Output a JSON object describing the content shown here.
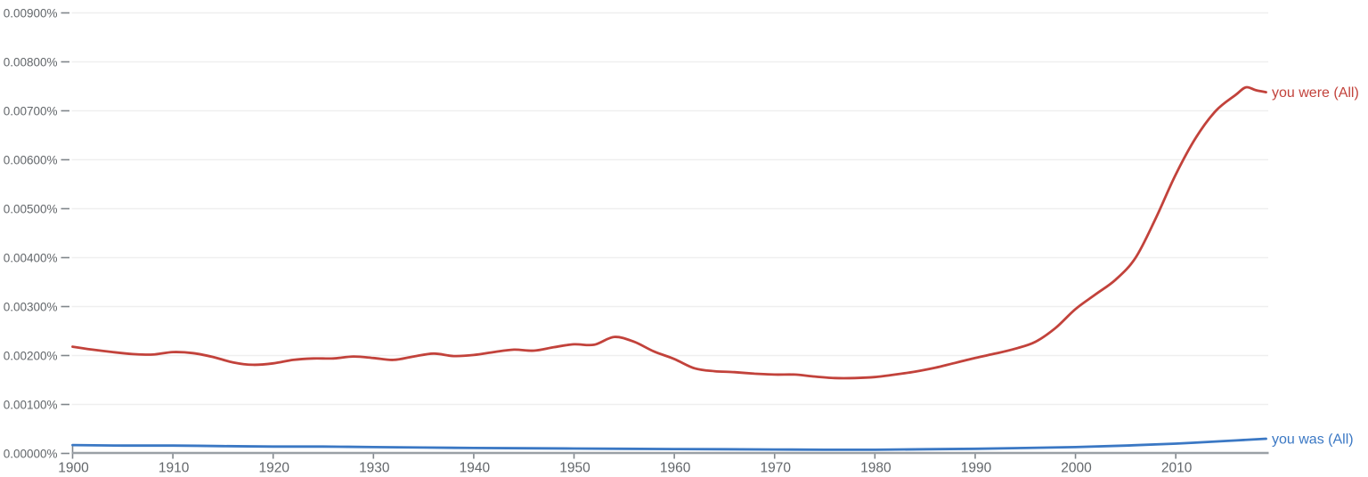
{
  "chart_data": {
    "type": "line",
    "title": "",
    "xlabel": "",
    "ylabel": "",
    "grid": "horizontal",
    "legend_position": "end-of-line-labels",
    "colors": {
      "series_red": "#c2423b",
      "series_blue": "#3b78c4",
      "axis_line": "#9aa0a6",
      "tick_mark": "#80868b",
      "tick_text": "#63676b",
      "gridline": "#efefef"
    },
    "y_axis": {
      "unit": "%",
      "min": 0,
      "max": 0.009,
      "tick_step": 0.001,
      "tick_labels": [
        "0.00000%",
        "0.00100%",
        "0.00200%",
        "0.00300%",
        "0.00400%",
        "0.00500%",
        "0.00600%",
        "0.00700%",
        "0.00800%",
        "0.00900%"
      ]
    },
    "x_axis": {
      "min": 1900,
      "max": 2019,
      "tick_years": [
        1900,
        1910,
        1920,
        1930,
        1940,
        1950,
        1960,
        1970,
        1980,
        1990,
        2000,
        2010
      ],
      "tick_labels": [
        "1900",
        "1910",
        "1920",
        "1930",
        "1940",
        "1950",
        "1960",
        "1970",
        "1980",
        "1990",
        "2000",
        "2010"
      ]
    },
    "series": [
      {
        "name": "you were (All)",
        "slug": "you-were-all",
        "color": "#c2423b",
        "x": [
          1900,
          1902,
          1904,
          1906,
          1908,
          1910,
          1912,
          1914,
          1916,
          1918,
          1920,
          1922,
          1924,
          1926,
          1928,
          1930,
          1932,
          1934,
          1936,
          1938,
          1940,
          1942,
          1944,
          1946,
          1948,
          1950,
          1952,
          1954,
          1956,
          1958,
          1960,
          1962,
          1964,
          1966,
          1968,
          1970,
          1972,
          1974,
          1976,
          1978,
          1980,
          1982,
          1984,
          1986,
          1988,
          1990,
          1992,
          1994,
          1996,
          1998,
          2000,
          2002,
          2004,
          2006,
          2008,
          2010,
          2012,
          2014,
          2016,
          2017,
          2018,
          2019
        ],
        "values": [
          0.00218,
          0.00212,
          0.00207,
          0.00203,
          0.00202,
          0.00207,
          0.00205,
          0.00197,
          0.00186,
          0.00181,
          0.00184,
          0.00191,
          0.00194,
          0.00194,
          0.00198,
          0.00195,
          0.00191,
          0.00198,
          0.00204,
          0.00199,
          0.00201,
          0.00207,
          0.00212,
          0.0021,
          0.00217,
          0.00223,
          0.00222,
          0.00238,
          0.00228,
          0.00208,
          0.00193,
          0.00174,
          0.00168,
          0.00166,
          0.00163,
          0.00161,
          0.00161,
          0.00157,
          0.00154,
          0.00154,
          0.00156,
          0.00161,
          0.00167,
          0.00175,
          0.00185,
          0.00195,
          0.00204,
          0.00214,
          0.00228,
          0.00256,
          0.00295,
          0.00325,
          0.00355,
          0.004,
          0.0048,
          0.0057,
          0.00645,
          0.007,
          0.00733,
          0.00748,
          0.00742,
          0.00738
        ]
      },
      {
        "name": "you was (All)",
        "slug": "you-was-all",
        "color": "#3b78c4",
        "x": [
          1900,
          1905,
          1910,
          1915,
          1920,
          1925,
          1930,
          1935,
          1940,
          1945,
          1950,
          1955,
          1960,
          1965,
          1970,
          1975,
          1980,
          1985,
          1990,
          1995,
          2000,
          2005,
          2010,
          2015,
          2019
        ],
        "values": [
          0.00017,
          0.00016,
          0.00016,
          0.00015,
          0.00014,
          0.00014,
          0.00013,
          0.00012,
          0.00011,
          0.000105,
          0.0001,
          9.5e-05,
          9e-05,
          8.5e-05,
          8e-05,
          7.5e-05,
          7.5e-05,
          8.5e-05,
          9.5e-05,
          0.00011,
          0.00013,
          0.00016,
          0.0002,
          0.000255,
          0.0003
        ]
      }
    ]
  }
}
